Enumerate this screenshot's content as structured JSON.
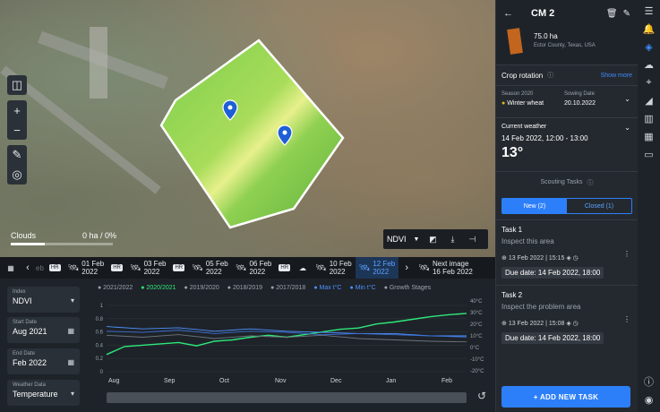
{
  "map": {
    "layer": "NDVI",
    "clouds_label": "Clouds",
    "clouds_value": "0 ha / 0%"
  },
  "timeline": {
    "partial_label": "eb",
    "items": [
      {
        "date": "01 Feb",
        "year": "2022",
        "hr": true
      },
      {
        "date": "03 Feb",
        "year": "2022",
        "hr": true
      },
      {
        "date": "05 Feb",
        "year": "2022",
        "hr": false
      },
      {
        "date": "06 Feb",
        "year": "2022",
        "hr": true
      },
      {
        "date": "10 Feb",
        "year": "2022",
        "hr": false
      },
      {
        "date": "12 Feb",
        "year": "2022",
        "hr": false,
        "active": true
      }
    ],
    "next_label": "Next image",
    "next_date": "16 Feb 2022"
  },
  "filters": {
    "index": {
      "label": "Index",
      "value": "NDVI"
    },
    "start": {
      "label": "Start Date",
      "value": "Aug 2021"
    },
    "end": {
      "label": "End Date",
      "value": "Feb 2022"
    },
    "weather": {
      "label": "Weather Data",
      "value": "Temperature"
    }
  },
  "chart_data": {
    "type": "line",
    "legend": [
      "2021/2022",
      "2020/2021",
      "2019/2020",
      "2018/2019",
      "2017/2018",
      "Max t°C",
      "Min t°C",
      "Growth Stages"
    ],
    "selected_series": "2020/2021",
    "x_labels": [
      "Aug",
      "Sep",
      "Oct",
      "Nov",
      "Dec",
      "Jan",
      "Feb"
    ],
    "y_left": {
      "ticks": [
        "1",
        "0.8",
        "0.6",
        "0.4",
        "0.2",
        "0"
      ],
      "ylim": [
        0,
        1
      ]
    },
    "y_right": {
      "ticks": [
        "40°C",
        "30°C",
        "20°C",
        "10°C",
        "0°C",
        "-10°C",
        "-20°C"
      ],
      "ylim": [
        -20,
        40
      ]
    },
    "series": [
      {
        "name": "2020/2021",
        "color": "#2ee87b",
        "x": [
          0,
          0.05,
          0.1,
          0.15,
          0.2,
          0.25,
          0.3,
          0.35,
          0.4,
          0.45,
          0.5,
          0.55,
          0.6,
          0.65,
          0.7,
          0.75,
          0.8,
          0.85,
          0.9,
          0.95,
          1.0
        ],
        "values": [
          0.26,
          0.38,
          0.4,
          0.42,
          0.44,
          0.39,
          0.46,
          0.48,
          0.52,
          0.55,
          0.52,
          0.56,
          0.6,
          0.64,
          0.66,
          0.72,
          0.75,
          0.79,
          0.83,
          0.86,
          0.88
        ]
      },
      {
        "name": "Max t°C",
        "color": "#4f90ff",
        "x": [
          0,
          0.1,
          0.2,
          0.3,
          0.4,
          0.5,
          0.6,
          0.7,
          0.8,
          0.9,
          1.0
        ],
        "values": [
          18,
          16,
          17,
          14,
          16,
          14,
          13,
          12,
          12,
          10,
          10
        ]
      },
      {
        "name": "Min t°C",
        "color": "#3a6fd1",
        "x": [
          0,
          0.1,
          0.2,
          0.3,
          0.4,
          0.5,
          0.6,
          0.7,
          0.8,
          0.9,
          1.0
        ],
        "values": [
          14,
          13,
          15,
          12,
          14,
          13,
          11,
          12,
          11,
          10,
          9
        ]
      },
      {
        "name": "2021/2022",
        "color": "#6c737c",
        "x": [
          0,
          0.1,
          0.2,
          0.3,
          0.4,
          0.5,
          0.6,
          0.7,
          0.8,
          0.9,
          1.0
        ],
        "values": [
          0.55,
          0.52,
          0.56,
          0.5,
          0.54,
          0.52,
          0.55,
          0.5,
          0.48,
          0.46,
          0.45
        ]
      }
    ]
  },
  "panel": {
    "field_name": "CM 2",
    "area": "75.0 ha",
    "location": "Ector County, Texas, USA",
    "crop_rotation": "Crop rotation",
    "show_more": "Show more",
    "season_label": "Season 2020",
    "season_value": "Winter wheat",
    "sowing_label": "Sowing Date",
    "sowing_value": "20.10.2022",
    "weather_label": "Current weather",
    "weather_time": "14 Feb 2022, 12:00 - 13:00",
    "temperature": "13°",
    "scouting_label": "Scouting Tasks",
    "tab_new": "New (2)",
    "tab_closed": "Closed (1)",
    "tasks": [
      {
        "title": "Task 1",
        "desc": "Inspect this area",
        "time": "13 Feb 2022 | 15:15",
        "due": "Due date: 14 Feb 2022, 18:00"
      },
      {
        "title": "Task 2",
        "desc": "Inspect the problem area",
        "time": "13 Feb 2022 | 15:08",
        "due": "Due date: 14 Feb 2022, 18:00"
      }
    ],
    "add_task": "+ ADD NEW TASK"
  }
}
